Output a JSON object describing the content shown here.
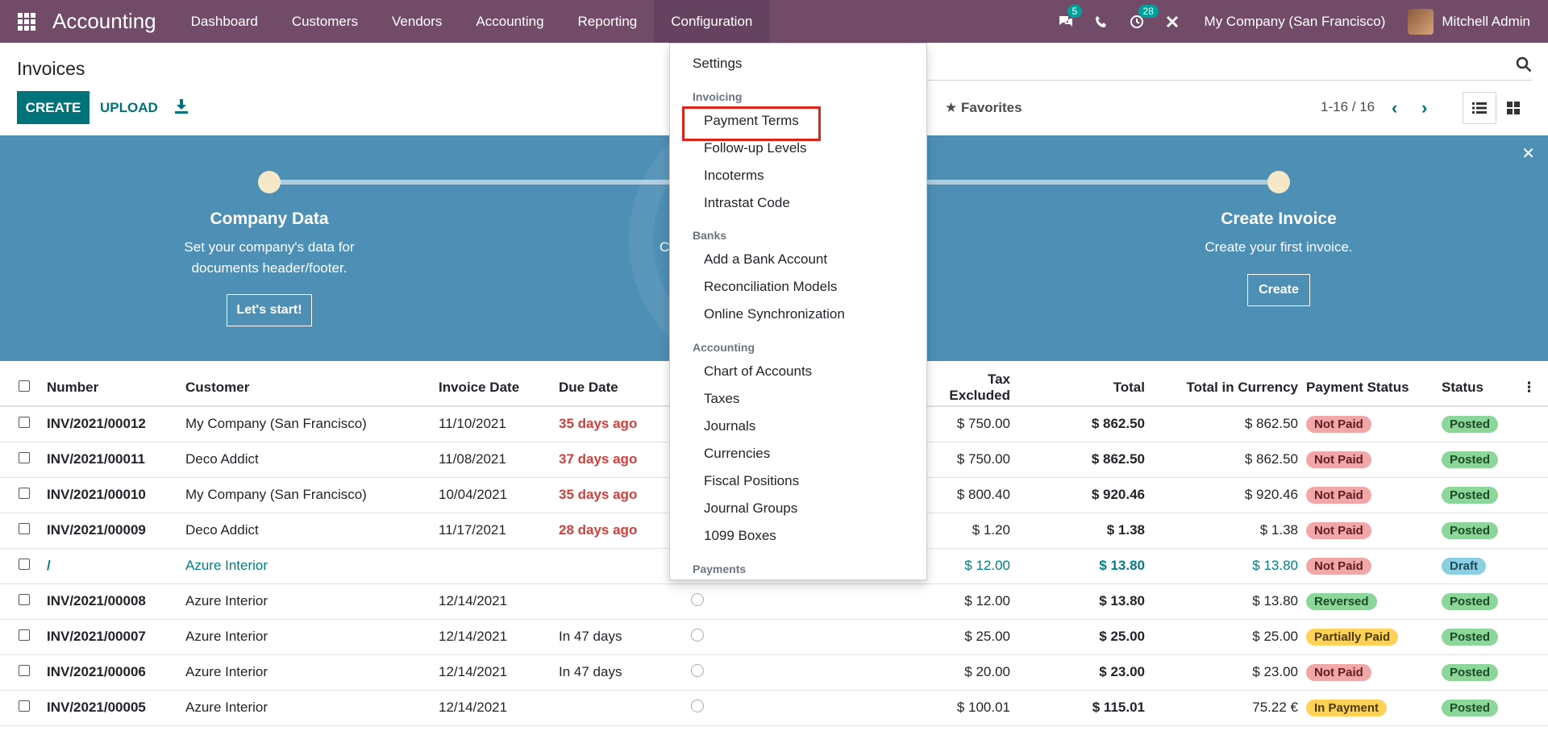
{
  "navbar": {
    "brand": "Accounting",
    "items": [
      "Dashboard",
      "Customers",
      "Vendors",
      "Accounting",
      "Reporting",
      "Configuration"
    ],
    "messages_badge": "5",
    "activity_badge": "28",
    "company": "My Company (San Francisco)",
    "user": "Mitchell Admin"
  },
  "control_panel": {
    "title": "Invoices",
    "create_label": "CREATE",
    "upload_label": "UPLOAD",
    "favorites_label": "Favorites",
    "pager": "1-16 / 16"
  },
  "banner": {
    "step1_title": "Company Data",
    "step1_desc_line1": "Set your company's data for",
    "step1_desc_line2": "documents header/footer.",
    "step1_button": "Let's start!",
    "step3_title": "Create Invoice",
    "step3_desc": "Create your first invoice.",
    "step3_button": "Create",
    "hidden_c": "C"
  },
  "table": {
    "headers": {
      "number": "Number",
      "customer": "Customer",
      "invoice_date": "Invoice Date",
      "due_date": "Due Date",
      "tax_excluded": "Tax Excluded",
      "total": "Total",
      "total_currency": "Total in Currency",
      "payment_status": "Payment Status",
      "status": "Status"
    },
    "rows": [
      {
        "number": "INV/2021/00012",
        "customer": "My Company (San Francisco)",
        "invoice_date": "11/10/2021",
        "due_date": "35 days ago",
        "tax_excluded": "$ 750.00",
        "total": "$ 862.50",
        "total_currency": "$ 862.50",
        "payment_status": "Not Paid",
        "status": "Posted"
      },
      {
        "number": "INV/2021/00011",
        "customer": "Deco Addict",
        "invoice_date": "11/08/2021",
        "due_date": "37 days ago",
        "tax_excluded": "$ 750.00",
        "total": "$ 862.50",
        "total_currency": "$ 862.50",
        "payment_status": "Not Paid",
        "status": "Posted"
      },
      {
        "number": "INV/2021/00010",
        "customer": "My Company (San Francisco)",
        "invoice_date": "10/04/2021",
        "due_date": "35 days ago",
        "tax_excluded": "$ 800.40",
        "total": "$ 920.46",
        "total_currency": "$ 920.46",
        "payment_status": "Not Paid",
        "status": "Posted"
      },
      {
        "number": "INV/2021/00009",
        "customer": "Deco Addict",
        "invoice_date": "11/17/2021",
        "due_date": "28 days ago",
        "tax_excluded": "$ 1.20",
        "total": "$ 1.38",
        "total_currency": "$ 1.38",
        "payment_status": "Not Paid",
        "status": "Posted"
      },
      {
        "number": "/",
        "customer": "Azure Interior",
        "invoice_date": "",
        "due_date": "",
        "tax_excluded": "$ 12.00",
        "total": "$ 13.80",
        "total_currency": "$ 13.80",
        "payment_status": "Not Paid",
        "status": "Draft"
      },
      {
        "number": "INV/2021/00008",
        "customer": "Azure Interior",
        "invoice_date": "12/14/2021",
        "due_date": "",
        "tax_excluded": "$ 12.00",
        "total": "$ 13.80",
        "total_currency": "$ 13.80",
        "payment_status": "Reversed",
        "status": "Posted"
      },
      {
        "number": "INV/2021/00007",
        "customer": "Azure Interior",
        "invoice_date": "12/14/2021",
        "due_date": "In 47 days",
        "tax_excluded": "$ 25.00",
        "total": "$ 25.00",
        "total_currency": "$ 25.00",
        "payment_status": "Partially Paid",
        "status": "Posted"
      },
      {
        "number": "INV/2021/00006",
        "customer": "Azure Interior",
        "invoice_date": "12/14/2021",
        "due_date": "In 47 days",
        "tax_excluded": "$ 20.00",
        "total": "$ 23.00",
        "total_currency": "$ 23.00",
        "payment_status": "Not Paid",
        "status": "Posted"
      },
      {
        "number": "INV/2021/00005",
        "customer": "Azure Interior",
        "invoice_date": "12/14/2021",
        "due_date": "",
        "tax_excluded": "$ 100.01",
        "total": "$ 115.01",
        "total_currency": "75.22 €",
        "payment_status": "In Payment",
        "status": "Posted"
      }
    ]
  },
  "dropdown": {
    "settings": "Settings",
    "invoicing_header": "Invoicing",
    "payment_terms": "Payment Terms",
    "followup_levels": "Follow-up Levels",
    "incoterms": "Incoterms",
    "intrastat_code": "Intrastat Code",
    "banks_header": "Banks",
    "add_bank_account": "Add a Bank Account",
    "reconciliation_models": "Reconciliation Models",
    "online_sync": "Online Synchronization",
    "accounting_header": "Accounting",
    "chart_of_accounts": "Chart of Accounts",
    "taxes": "Taxes",
    "journals": "Journals",
    "currencies": "Currencies",
    "fiscal_positions": "Fiscal Positions",
    "journal_groups": "Journal Groups",
    "boxes_1099": "1099 Boxes",
    "payments_header": "Payments"
  },
  "colors": {
    "navbar": "#714b67",
    "primary": "#00737a",
    "banner": "#4e8fb5",
    "overdue": "#d23f3a",
    "highlight": "#e2231a"
  }
}
